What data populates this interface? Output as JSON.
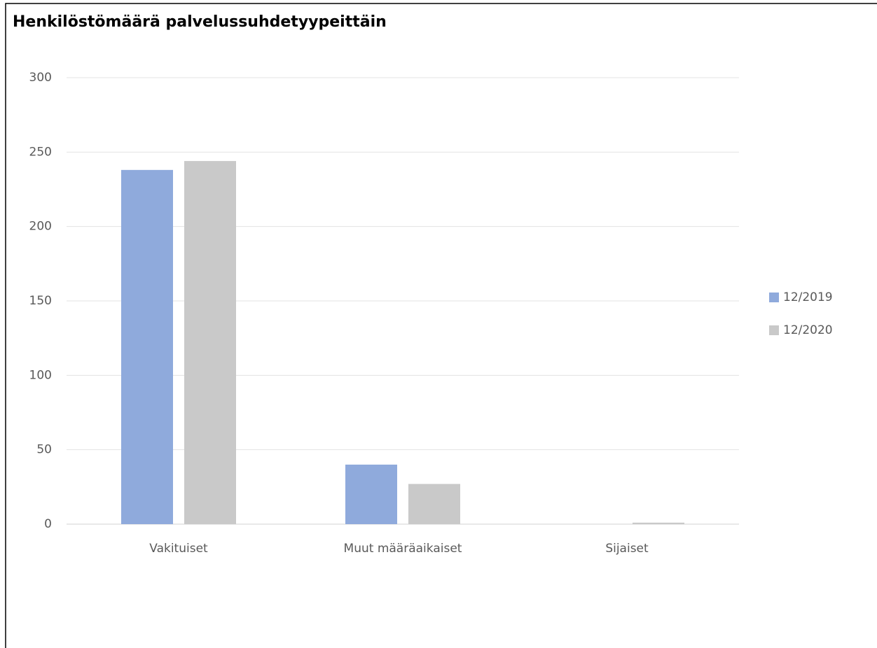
{
  "chart_data": {
    "type": "bar",
    "title": "Henkilöstömäärä palvelussuhdetyypeittäin",
    "categories": [
      "Vakituiset",
      "Muut määräaikaiset",
      "Sijaiset"
    ],
    "series": [
      {
        "name": "12/2019",
        "color": "#8faadc",
        "values": [
          238,
          40,
          0
        ]
      },
      {
        "name": "12/2020",
        "color": "#c9c9c9",
        "values": [
          244,
          27,
          1
        ]
      }
    ],
    "ylim": [
      0,
      300
    ],
    "yticks": [
      0,
      50,
      100,
      150,
      200,
      250,
      300
    ],
    "grid": true,
    "legend": "right"
  }
}
